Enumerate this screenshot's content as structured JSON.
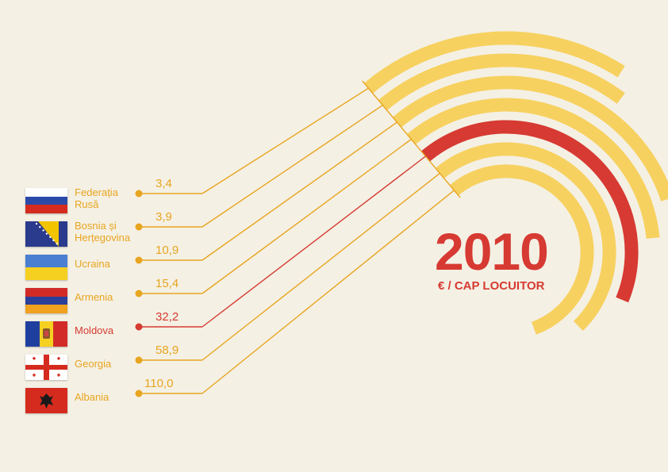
{
  "chart_data": {
    "type": "radial-bar",
    "title": "2010",
    "subtitle": "€ / CAP LOCUITOR",
    "colors": {
      "default": "#f7d160",
      "line": "#e8a520",
      "highlight": "#d63a32",
      "background": "#f4f0e4"
    },
    "highlight_category": "Moldova",
    "series": [
      {
        "country": "Federația\nRusă",
        "label": "3,4",
        "value": 3.4,
        "flag": "russia"
      },
      {
        "country": "Bosnia și\nHerțegovina",
        "label": "3,9",
        "value": 3.9,
        "flag": "bosnia"
      },
      {
        "country": "Ucraina",
        "label": "10,9",
        "value": 10.9,
        "flag": "ukraine"
      },
      {
        "country": "Armenia",
        "label": "15,4",
        "value": 15.4,
        "flag": "armenia"
      },
      {
        "country": "Moldova",
        "label": "32,2",
        "value": 32.2,
        "flag": "moldova",
        "highlight": true
      },
      {
        "country": "Georgia",
        "label": "58,9",
        "value": 58.9,
        "flag": "georgia"
      },
      {
        "country": "Albania",
        "label": "110,0",
        "value": 110.0,
        "flag": "albania"
      }
    ]
  }
}
